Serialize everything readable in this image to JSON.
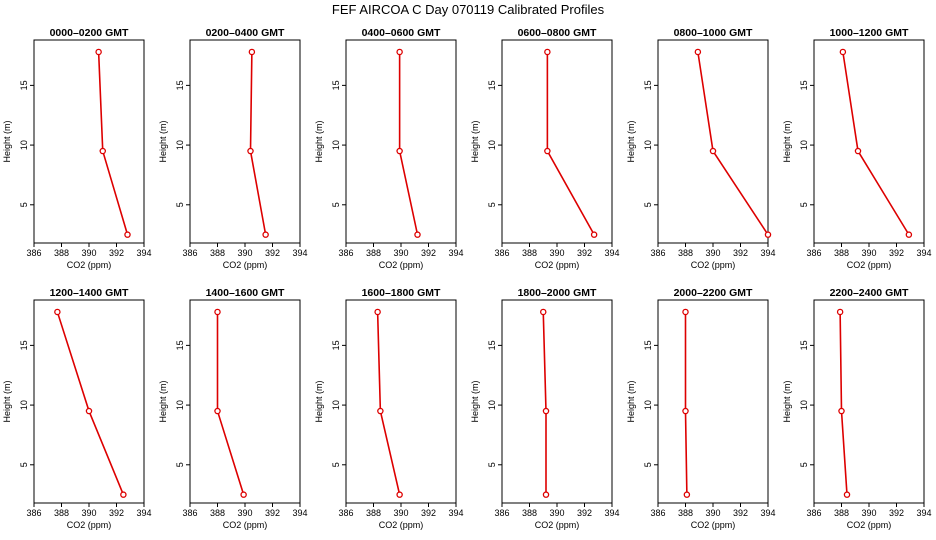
{
  "chart_data": {
    "type": "line",
    "title": "FEF AIRCOA C  Day 070119  Calibrated Profiles",
    "xlabel": "CO2 (ppm)",
    "ylabel": "Height (m)",
    "xlim": [
      386,
      394
    ],
    "ylim": [
      1.8,
      18.8
    ],
    "xticks": [
      386,
      388,
      390,
      392,
      394
    ],
    "xtick_labels": [
      "386",
      "388",
      "390",
      "392",
      "394"
    ],
    "yticks": [
      5,
      10,
      15
    ],
    "ytick_labels": [
      "5",
      "10",
      "15"
    ],
    "heights": [
      17.8,
      9.5,
      2.5
    ],
    "line_color": "#dd0000",
    "panels": [
      {
        "label": "0000–0200 GMT",
        "x": [
          390.7,
          391.0,
          392.8
        ]
      },
      {
        "label": "0200–0400 GMT",
        "x": [
          390.5,
          390.4,
          391.5
        ]
      },
      {
        "label": "0400–0600 GMT",
        "x": [
          389.9,
          389.9,
          391.2
        ]
      },
      {
        "label": "0600–0800 GMT",
        "x": [
          389.3,
          389.3,
          392.7
        ]
      },
      {
        "label": "0800–1000 GMT",
        "x": [
          388.9,
          390.0,
          394.0
        ]
      },
      {
        "label": "1000–1200 GMT",
        "x": [
          388.1,
          389.2,
          392.9
        ]
      },
      {
        "label": "1200–1400 GMT",
        "x": [
          387.7,
          390.0,
          392.5
        ]
      },
      {
        "label": "1400–1600 GMT",
        "x": [
          388.0,
          388.0,
          389.9
        ]
      },
      {
        "label": "1600–1800 GMT",
        "x": [
          388.3,
          388.5,
          389.9
        ]
      },
      {
        "label": "1800–2000 GMT",
        "x": [
          389.0,
          389.2,
          389.2
        ]
      },
      {
        "label": "2000–2200 GMT",
        "x": [
          388.0,
          388.0,
          388.1
        ]
      },
      {
        "label": "2200–2400 GMT",
        "x": [
          387.9,
          388.0,
          388.4
        ]
      }
    ]
  }
}
